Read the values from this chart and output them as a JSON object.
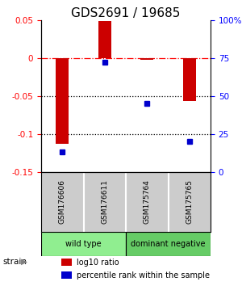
{
  "title": "GDS2691 / 19685",
  "samples": [
    "GSM176606",
    "GSM176611",
    "GSM175764",
    "GSM175765"
  ],
  "log10_ratio": [
    -0.113,
    0.049,
    -0.002,
    -0.057
  ],
  "percentile_rank": [
    13,
    72,
    45,
    20
  ],
  "groups": [
    {
      "label": "wild type",
      "samples": [
        0,
        1
      ],
      "color": "#90ee90"
    },
    {
      "label": "dominant negative",
      "samples": [
        2,
        3
      ],
      "color": "#66cc66"
    }
  ],
  "group_label": "strain",
  "ylim_left": [
    -0.15,
    0.05
  ],
  "ylim_right": [
    0,
    100
  ],
  "yticks_left": [
    0.05,
    0,
    -0.05,
    -0.1,
    -0.15
  ],
  "yticks_right": [
    100,
    75,
    50,
    25,
    0
  ],
  "hlines_dotted": [
    -0.05,
    -0.1
  ],
  "hline_dashed": 0,
  "bar_color": "#cc0000",
  "square_color": "#0000cc",
  "bar_width": 0.3,
  "title_fontsize": 11,
  "tick_fontsize": 7.5,
  "legend_fontsize": 7,
  "sample_fontsize": 6.5,
  "group_fontsize": 7,
  "bg_color": "#cccccc",
  "group_colors": [
    "#90ee90",
    "#66cc66"
  ]
}
